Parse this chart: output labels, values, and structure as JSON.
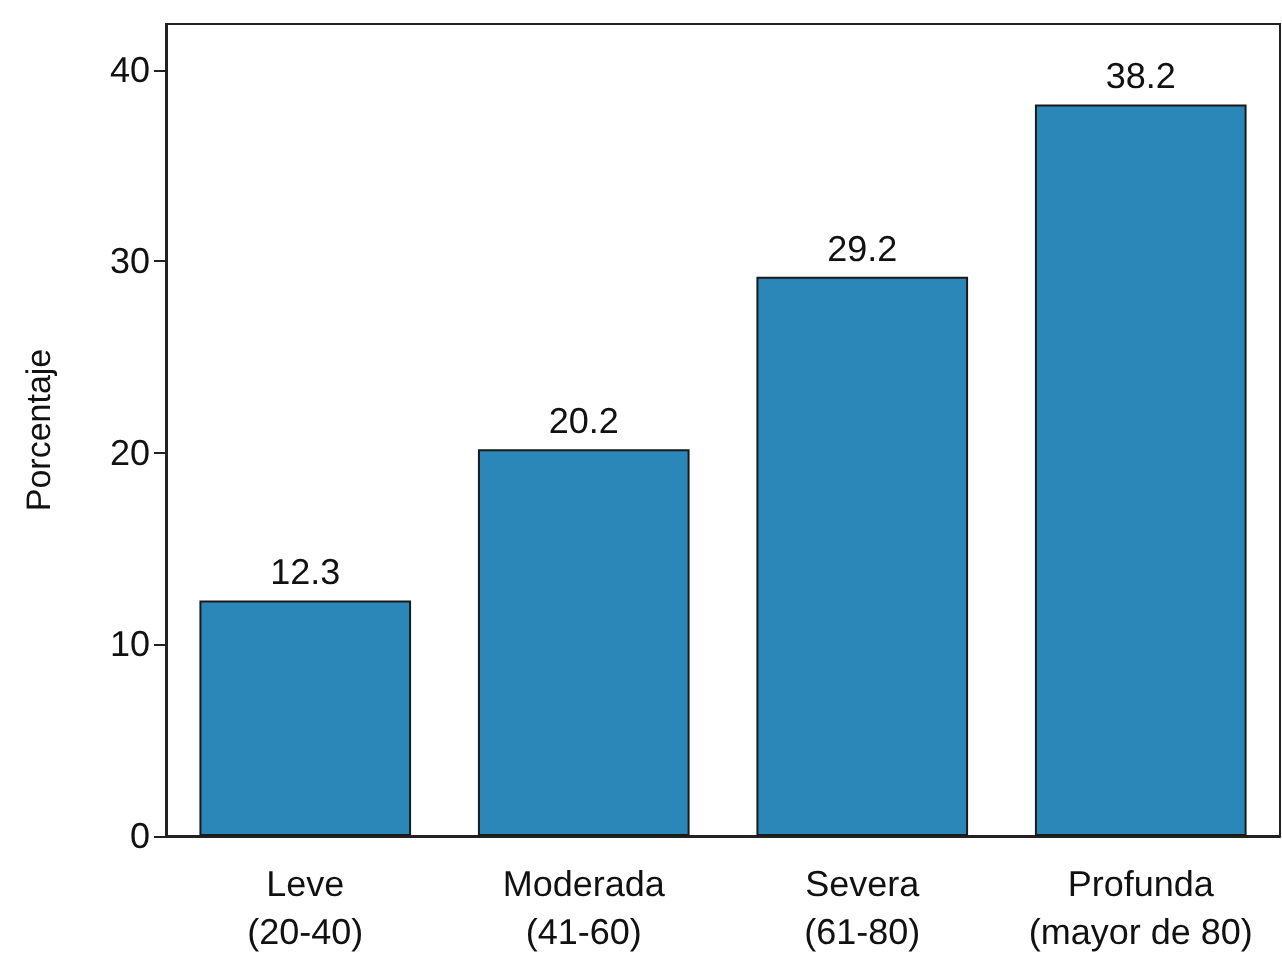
{
  "chart_data": {
    "type": "bar",
    "ylabel": "Porcentaje",
    "categories": [
      "Leve\n(20-40)",
      "Moderada\n(41-60)",
      "Severa\n(61-80)",
      "Profunda\n(mayor de 80)"
    ],
    "values": [
      12.3,
      20.2,
      29.2,
      38.2
    ],
    "color": "#2a87b7",
    "ylim": [
      0,
      42.4
    ],
    "yticks": [
      0,
      10,
      20,
      30,
      40
    ],
    "grid": false,
    "data_labels": true
  }
}
